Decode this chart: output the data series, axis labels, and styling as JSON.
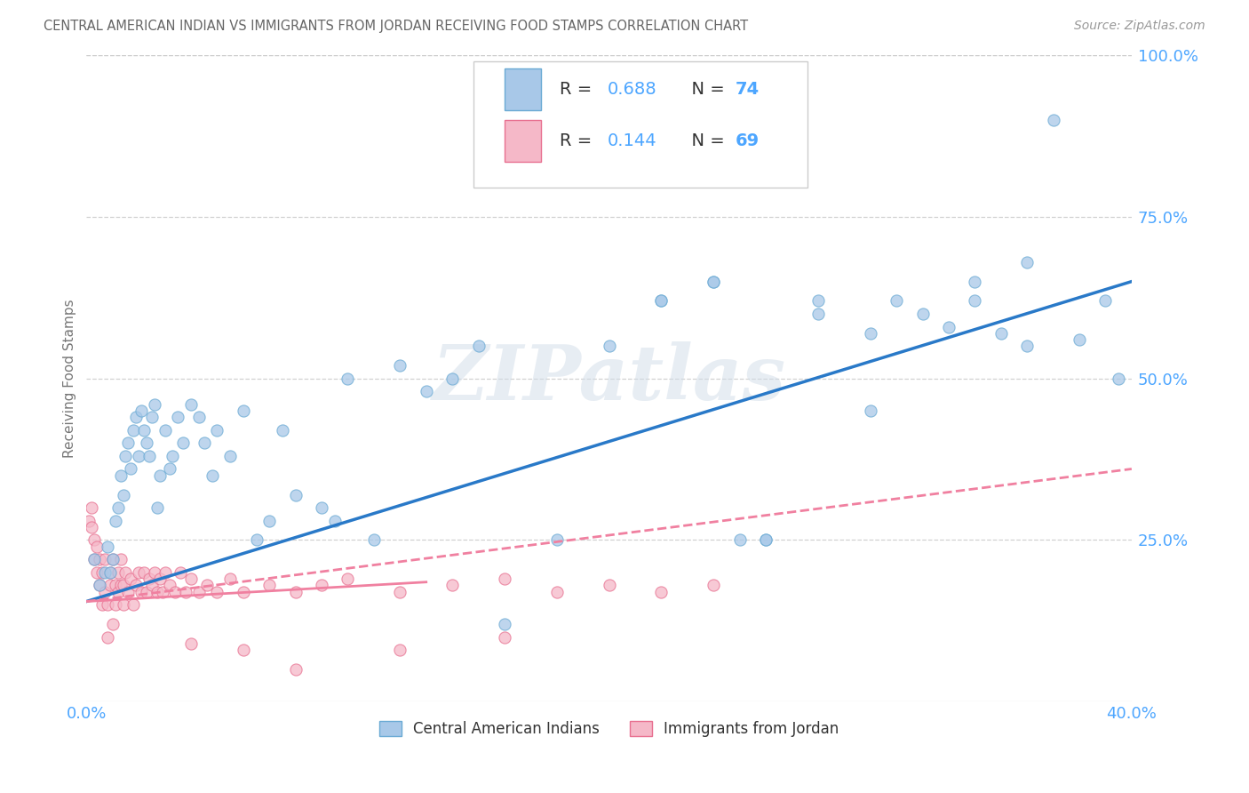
{
  "title": "CENTRAL AMERICAN INDIAN VS IMMIGRANTS FROM JORDAN RECEIVING FOOD STAMPS CORRELATION CHART",
  "source": "Source: ZipAtlas.com",
  "ylabel": "Receiving Food Stamps",
  "legend_label1": "Central American Indians",
  "legend_label2": "Immigrants from Jordan",
  "color_blue": "#a8c8e8",
  "color_blue_edge": "#6aaad4",
  "color_pink": "#f5b8c8",
  "color_pink_edge": "#e87090",
  "color_blue_line": "#2979c8",
  "color_pink_line": "#f080a0",
  "watermark": "ZIPatlas",
  "background_color": "#ffffff",
  "title_color": "#666666",
  "tick_label_color": "#4da6ff",
  "grid_color": "#cccccc",
  "xlim": [
    0.0,
    0.4
  ],
  "ylim": [
    0.0,
    1.0
  ],
  "yticks": [
    0.25,
    0.5,
    0.75,
    1.0
  ],
  "ytick_labels": [
    "25.0%",
    "50.0%",
    "75.0%",
    "100.0%"
  ],
  "xtick_labels": [
    "0.0%",
    "40.0%"
  ],
  "blue_line_x0": 0.0,
  "blue_line_y0": 0.155,
  "blue_line_x1": 0.4,
  "blue_line_y1": 0.65,
  "pink_line_x0": 0.0,
  "pink_line_y0": 0.155,
  "pink_line_x1": 0.4,
  "pink_line_y1": 0.36,
  "blue_scatter_x": [
    0.003,
    0.005,
    0.007,
    0.008,
    0.009,
    0.01,
    0.011,
    0.012,
    0.013,
    0.014,
    0.015,
    0.016,
    0.017,
    0.018,
    0.019,
    0.02,
    0.021,
    0.022,
    0.023,
    0.024,
    0.025,
    0.026,
    0.027,
    0.028,
    0.03,
    0.032,
    0.033,
    0.035,
    0.037,
    0.04,
    0.043,
    0.045,
    0.048,
    0.05,
    0.055,
    0.06,
    0.065,
    0.07,
    0.075,
    0.08,
    0.09,
    0.095,
    0.1,
    0.11,
    0.12,
    0.13,
    0.14,
    0.15,
    0.16,
    0.18,
    0.2,
    0.22,
    0.24,
    0.25,
    0.26,
    0.28,
    0.3,
    0.31,
    0.32,
    0.33,
    0.34,
    0.35,
    0.36,
    0.37,
    0.38,
    0.39,
    0.395,
    0.36,
    0.34,
    0.3,
    0.28,
    0.26,
    0.24,
    0.22
  ],
  "blue_scatter_y": [
    0.22,
    0.18,
    0.2,
    0.24,
    0.2,
    0.22,
    0.28,
    0.3,
    0.35,
    0.32,
    0.38,
    0.4,
    0.36,
    0.42,
    0.44,
    0.38,
    0.45,
    0.42,
    0.4,
    0.38,
    0.44,
    0.46,
    0.3,
    0.35,
    0.42,
    0.36,
    0.38,
    0.44,
    0.4,
    0.46,
    0.44,
    0.4,
    0.35,
    0.42,
    0.38,
    0.45,
    0.25,
    0.28,
    0.42,
    0.32,
    0.3,
    0.28,
    0.5,
    0.25,
    0.52,
    0.48,
    0.5,
    0.55,
    0.12,
    0.25,
    0.55,
    0.62,
    0.65,
    0.25,
    0.25,
    0.6,
    0.57,
    0.62,
    0.6,
    0.58,
    0.62,
    0.57,
    0.55,
    0.9,
    0.56,
    0.62,
    0.5,
    0.68,
    0.65,
    0.45,
    0.62,
    0.25,
    0.65,
    0.62
  ],
  "pink_scatter_x": [
    0.001,
    0.002,
    0.002,
    0.003,
    0.003,
    0.004,
    0.004,
    0.005,
    0.005,
    0.006,
    0.006,
    0.007,
    0.007,
    0.008,
    0.008,
    0.009,
    0.009,
    0.01,
    0.01,
    0.011,
    0.011,
    0.012,
    0.012,
    0.013,
    0.013,
    0.014,
    0.014,
    0.015,
    0.016,
    0.017,
    0.018,
    0.019,
    0.02,
    0.021,
    0.022,
    0.023,
    0.024,
    0.025,
    0.026,
    0.027,
    0.028,
    0.029,
    0.03,
    0.032,
    0.034,
    0.036,
    0.038,
    0.04,
    0.043,
    0.046,
    0.05,
    0.055,
    0.06,
    0.07,
    0.08,
    0.09,
    0.1,
    0.12,
    0.14,
    0.16,
    0.18,
    0.2,
    0.22,
    0.24,
    0.08,
    0.06,
    0.04,
    0.12,
    0.16
  ],
  "pink_scatter_y": [
    0.28,
    0.27,
    0.3,
    0.25,
    0.22,
    0.2,
    0.24,
    0.18,
    0.22,
    0.15,
    0.2,
    0.17,
    0.22,
    0.1,
    0.15,
    0.18,
    0.2,
    0.12,
    0.22,
    0.18,
    0.15,
    0.2,
    0.17,
    0.18,
    0.22,
    0.15,
    0.18,
    0.2,
    0.17,
    0.19,
    0.15,
    0.18,
    0.2,
    0.17,
    0.2,
    0.17,
    0.19,
    0.18,
    0.2,
    0.17,
    0.19,
    0.17,
    0.2,
    0.18,
    0.17,
    0.2,
    0.17,
    0.19,
    0.17,
    0.18,
    0.17,
    0.19,
    0.17,
    0.18,
    0.17,
    0.18,
    0.19,
    0.17,
    0.18,
    0.19,
    0.17,
    0.18,
    0.17,
    0.18,
    0.05,
    0.08,
    0.09,
    0.08,
    0.1
  ]
}
